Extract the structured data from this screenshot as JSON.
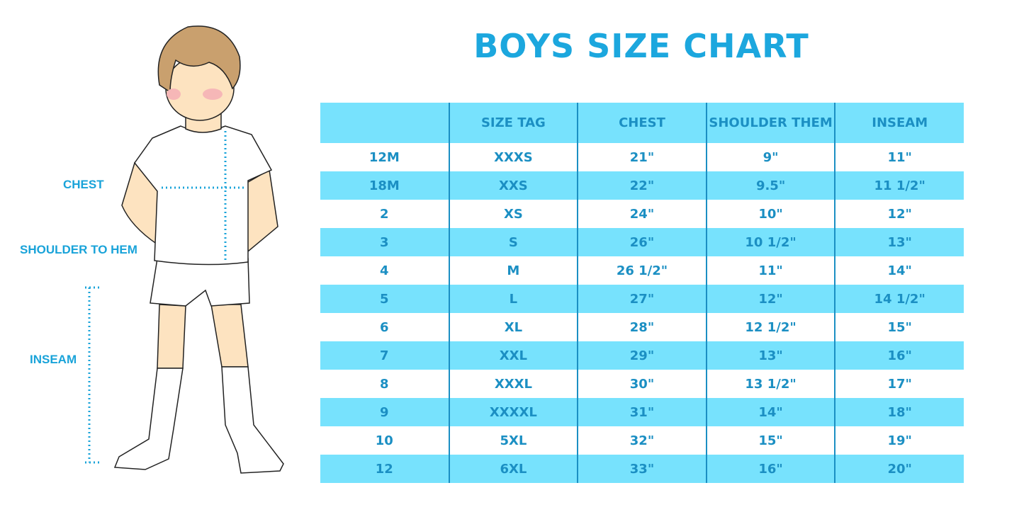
{
  "title": "BOYS SIZE CHART",
  "figure_labels": {
    "chest": "CHEST",
    "shoulder_to_hem": "SHOULDER TO HEM",
    "inseam": "INSEAM"
  },
  "colors": {
    "accent": "#1ca7de",
    "row_fill": "#77e2fd",
    "table_text": "#1b8fc3"
  },
  "table": {
    "headers": [
      "",
      "SIZE TAG",
      "CHEST",
      "SHOULDER THEM",
      "INSEAM"
    ],
    "rows": [
      [
        "12M",
        "XXXS",
        "21\"",
        "9\"",
        "11\""
      ],
      [
        "18M",
        "XXS",
        "22\"",
        "9.5\"",
        "11 1/2\""
      ],
      [
        "2",
        "XS",
        "24\"",
        "10\"",
        "12\""
      ],
      [
        "3",
        "S",
        "26\"",
        "10 1/2\"",
        "13\""
      ],
      [
        "4",
        "M",
        "26 1/2\"",
        "11\"",
        "14\""
      ],
      [
        "5",
        "L",
        "27\"",
        "12\"",
        "14 1/2\""
      ],
      [
        "6",
        "XL",
        "28\"",
        "12 1/2\"",
        "15\""
      ],
      [
        "7",
        "XXL",
        "29\"",
        "13\"",
        "16\""
      ],
      [
        "8",
        "XXXL",
        "30\"",
        "13 1/2\"",
        "17\""
      ],
      [
        "9",
        "XXXXL",
        "31\"",
        "14\"",
        "18\""
      ],
      [
        "10",
        "5XL",
        "32\"",
        "15\"",
        "19\""
      ],
      [
        "12",
        "6XL",
        "33\"",
        "16\"",
        "20\""
      ]
    ]
  }
}
